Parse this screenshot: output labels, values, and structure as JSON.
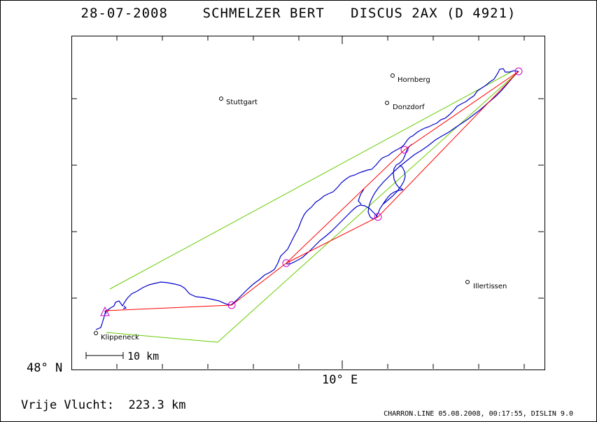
{
  "header": {
    "date": "28-07-2008",
    "pilot": "SCHMELZER BERT",
    "glider": "DISCUS 2AX (D 4921)"
  },
  "axes": {
    "latitude_label": "48° N",
    "longitude_label": "10° E"
  },
  "places": [
    {
      "name": "Hornberg"
    },
    {
      "name": "Stuttgart"
    },
    {
      "name": "Donzdorf"
    },
    {
      "name": "Illertissen"
    },
    {
      "name": "Klippeneck"
    }
  ],
  "scale_bar": {
    "label": "10 km"
  },
  "summary": {
    "flight_type": "Vrije Vlucht:",
    "distance": "223.3 km"
  },
  "footer": {
    "text": "CHARRON.LINE 05.08.2008, 00:17:55, DISLIN 9.0"
  },
  "colors": {
    "track": "#0000cc",
    "task_line": "#ff0000",
    "sector": "#66cc00",
    "turnpoint": "#cc00cc",
    "frame": "#000000"
  }
}
